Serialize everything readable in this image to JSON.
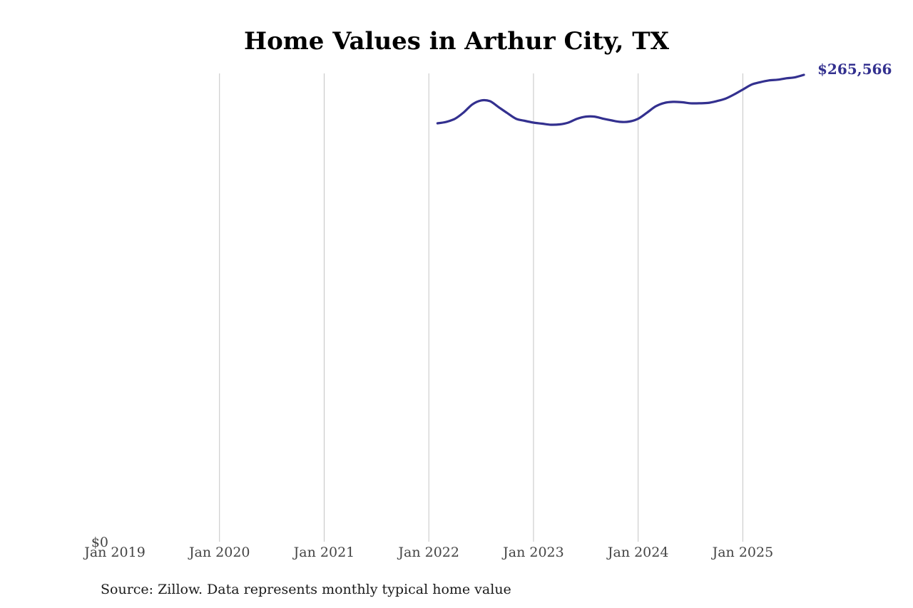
{
  "chart_data": {
    "type": "line",
    "title": "Home Values in Arthur City, TX",
    "source": "Source: Zillow. Data represents monthly typical home value",
    "xlabel": "",
    "ylabel": "",
    "x_range": [
      "2019-01",
      "2025-08"
    ],
    "ylim": [
      0,
      265566
    ],
    "y_tick_label": "$0",
    "x_ticks": [
      "Jan 2019",
      "Jan 2020",
      "Jan 2021",
      "Jan 2022",
      "Jan 2023",
      "Jan 2024",
      "Jan 2025"
    ],
    "grid": "vertical",
    "line_color": "#33308f",
    "end_label": "$265,566",
    "series": [
      {
        "x": [
          "2022-02",
          "2022-03",
          "2022-04",
          "2022-05",
          "2022-06",
          "2022-07",
          "2022-08",
          "2022-09",
          "2022-10",
          "2022-11",
          "2022-12",
          "2023-01",
          "2023-02",
          "2023-03",
          "2023-04",
          "2023-05",
          "2023-06",
          "2023-07",
          "2023-08",
          "2023-09",
          "2023-10",
          "2023-11",
          "2023-12",
          "2024-01",
          "2024-02",
          "2024-03",
          "2024-04",
          "2024-05",
          "2024-06",
          "2024-07",
          "2024-08",
          "2024-09",
          "2024-10",
          "2024-11",
          "2024-12",
          "2025-01",
          "2025-02",
          "2025-03",
          "2025-04",
          "2025-05",
          "2025-06",
          "2025-07",
          "2025-08"
        ],
        "values": [
          238000,
          238800,
          240600,
          244200,
          248800,
          251000,
          250600,
          247200,
          243800,
          240600,
          239400,
          238400,
          237800,
          237200,
          237400,
          238400,
          240600,
          241800,
          241800,
          240600,
          239600,
          238800,
          239000,
          240600,
          244000,
          247600,
          249600,
          250200,
          250000,
          249400,
          249400,
          249600,
          250600,
          252000,
          254400,
          257200,
          260000,
          261400,
          262400,
          262800,
          263600,
          264200,
          265566
        ]
      }
    ]
  }
}
